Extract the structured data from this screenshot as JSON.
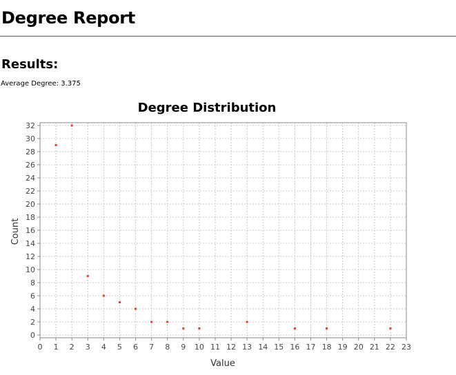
{
  "report": {
    "title": "Degree Report",
    "results_heading": "Results:",
    "average_label": "Average Degree:",
    "average_value": "3.375"
  },
  "chart_data": {
    "type": "scatter",
    "title": "Degree Distribution",
    "xlabel": "Value",
    "ylabel": "Count",
    "xlim": [
      0,
      23
    ],
    "ylim": [
      0,
      32
    ],
    "x_ticks": [
      0,
      1,
      2,
      3,
      4,
      5,
      6,
      7,
      8,
      9,
      10,
      11,
      12,
      13,
      14,
      15,
      16,
      17,
      18,
      19,
      20,
      21,
      22,
      23
    ],
    "y_ticks": [
      0,
      2,
      4,
      6,
      8,
      10,
      12,
      14,
      16,
      18,
      20,
      22,
      24,
      26,
      28,
      30,
      32
    ],
    "grid": true,
    "point_color": "#e8402a",
    "x": [
      1,
      2,
      3,
      4,
      5,
      6,
      7,
      8,
      9,
      10,
      13,
      16,
      18,
      22
    ],
    "y": [
      29,
      32,
      9,
      6,
      5,
      4,
      2,
      2,
      1,
      1,
      2,
      1,
      1,
      1
    ]
  }
}
